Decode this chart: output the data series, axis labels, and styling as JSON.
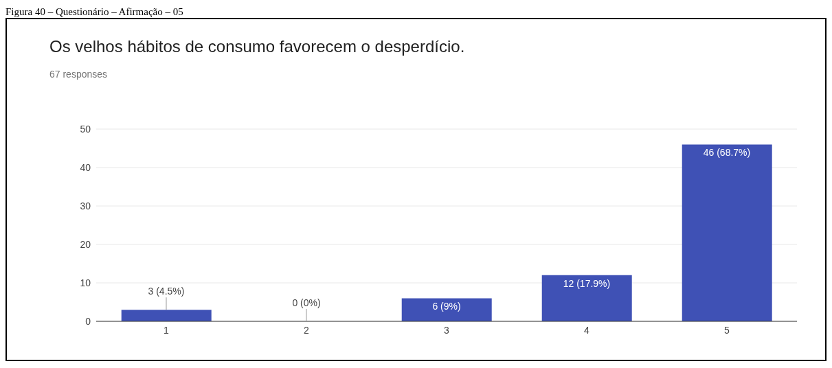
{
  "chart_data": {
    "type": "bar",
    "title": "Os velhos hábitos de consumo favorecem o desperdício.",
    "subtitle": "67 responses",
    "annotations": [
      "Figura 40 – Questionário – Afirmação – 05"
    ],
    "categories": [
      "1",
      "2",
      "3",
      "4",
      "5"
    ],
    "values": [
      3,
      0,
      6,
      12,
      46
    ],
    "value_labels": [
      "3 (4.5%)",
      "0 (0%)",
      "6 (9%)",
      "12 (17.9%)",
      "46 (68.7%)"
    ],
    "color": "#3f51b5",
    "ylim": [
      0,
      50
    ],
    "yticks": [
      0,
      10,
      20,
      30,
      40,
      50
    ],
    "grid": "y"
  }
}
